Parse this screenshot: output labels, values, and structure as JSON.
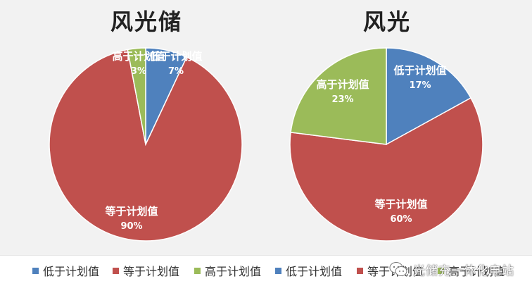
{
  "colors": {
    "below": "#4f81bd",
    "equal": "#c0504d",
    "above": "#9bbb59"
  },
  "chart_data": [
    {
      "type": "pie",
      "title": "风光储",
      "slices": [
        {
          "name": "低于计划值",
          "value": 7,
          "label": "7%",
          "color": "#4f81bd"
        },
        {
          "name": "等于计划值",
          "value": 90,
          "label": "90%",
          "color": "#c0504d"
        },
        {
          "name": "高于计划值",
          "value": 3,
          "label": "3%",
          "color": "#9bbb59"
        }
      ]
    },
    {
      "type": "pie",
      "title": "风光",
      "slices": [
        {
          "name": "低于计划值",
          "value": 17,
          "label": "17%",
          "color": "#4f81bd"
        },
        {
          "name": "等于计划值",
          "value": 60,
          "label": "60%",
          "color": "#c0504d"
        },
        {
          "name": "高于计划值",
          "value": 23,
          "label": "23%",
          "color": "#9bbb59"
        }
      ]
    }
  ],
  "legend": [
    {
      "label": "低于计划值",
      "color": "#4f81bd"
    },
    {
      "label": "等于计划值",
      "color": "#c0504d"
    },
    {
      "label": "高于计划值",
      "color": "#9bbb59"
    },
    {
      "label": "低于计划值",
      "color": "#4f81bd"
    },
    {
      "label": "等于计划值",
      "color": "#c0504d"
    },
    {
      "label": "高于计划值",
      "color": "#9bbb59"
    }
  ],
  "watermark": {
    "text": "光储充一体化电站",
    "icon": "wechat-icon"
  }
}
